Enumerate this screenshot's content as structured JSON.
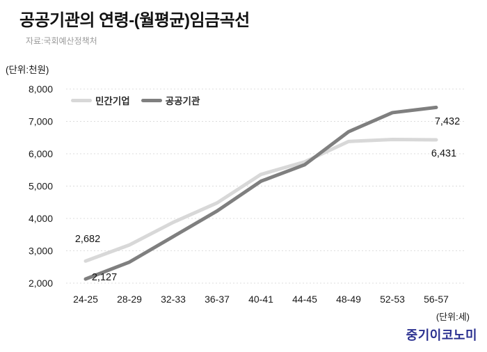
{
  "header": {
    "title": "공공기관의 연령-(월평균)임금곡선",
    "source": "자료:국회예산정책처"
  },
  "footer": {
    "logo": "중기이코노미"
  },
  "colors": {
    "private": "#d8d8d8",
    "public": "#7f7f7f",
    "grid": "#dcdcdc",
    "text": "#1a1a1a",
    "source": "#9b9b9b",
    "logo": "#2b3190"
  },
  "chart_data": {
    "type": "line",
    "title": "공공기관의 연령-(월평균)임금곡선",
    "y_unit_label": "(단위:천원)",
    "x_unit_label": "(단위:세)",
    "categories": [
      "24-25",
      "28-29",
      "32-33",
      "36-37",
      "40-41",
      "44-45",
      "48-49",
      "52-53",
      "56-57"
    ],
    "series": [
      {
        "name": "민간기업",
        "color_key": "private",
        "values": [
          2682,
          3180,
          3880,
          4480,
          5360,
          5750,
          6380,
          6440,
          6431
        ]
      },
      {
        "name": "공공기관",
        "color_key": "public",
        "values": [
          2127,
          2650,
          3440,
          4230,
          5150,
          5660,
          6680,
          7270,
          7432
        ]
      }
    ],
    "ylim": [
      2000,
      8000
    ],
    "ytick_step": 1000,
    "ytick_labels": [
      "2,000",
      "3,000",
      "4,000",
      "5,000",
      "6,000",
      "7,000",
      "8,000"
    ],
    "grid": "horizontal-dotted",
    "legend_position": "top-left-inside",
    "annotations": [
      {
        "text": "2,682",
        "series": 0,
        "index": 0
      },
      {
        "text": "2,127",
        "series": 1,
        "index": 0
      },
      {
        "text": "7,432",
        "series": 1,
        "index": 8
      },
      {
        "text": "6,431",
        "series": 0,
        "index": 8
      }
    ]
  }
}
